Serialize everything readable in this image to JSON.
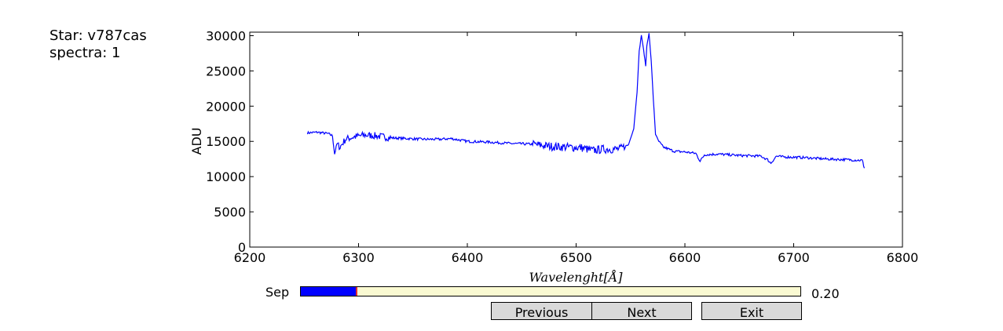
{
  "info": {
    "star_line": "Star: v787cas",
    "spectra_line": "spectra: 1"
  },
  "chart_data": {
    "type": "line",
    "xlabel": "Wavelenght[Å]",
    "ylabel": "ADU",
    "xlim": [
      6200,
      6800
    ],
    "ylim": [
      0,
      30500
    ],
    "xticks": [
      "6200",
      "6300",
      "6400",
      "6500",
      "6600",
      "6700",
      "6800"
    ],
    "yticks": [
      "0",
      "5000",
      "10000",
      "15000",
      "20000",
      "25000",
      "30000"
    ],
    "grid": false,
    "line_color": "#0000ff",
    "series": [
      {
        "x": [
          6253,
          6262,
          6272,
          6276,
          6278,
          6280,
          6283,
          6288,
          6295,
          6305,
          6315,
          6330,
          6345,
          6360,
          6375,
          6385,
          6400,
          6420,
          6440,
          6460,
          6475,
          6490,
          6505,
          6515,
          6525,
          6540,
          6548,
          6553,
          6556,
          6558,
          6560,
          6562,
          6564,
          6565,
          6567,
          6569,
          6571,
          6573,
          6576,
          6580,
          6590,
          6600,
          6610,
          6614,
          6618,
          6630,
          6650,
          6670,
          6676,
          6679,
          6684,
          6690,
          6710,
          6730,
          6750,
          6763,
          6765
        ],
        "y": [
          16200,
          16300,
          16100,
          15800,
          13200,
          14600,
          14200,
          15300,
          15600,
          15900,
          15800,
          15500,
          15400,
          15300,
          15300,
          15400,
          15000,
          14900,
          14700,
          14600,
          14300,
          14200,
          14100,
          13700,
          13900,
          13900,
          14500,
          16800,
          22000,
          27800,
          30100,
          28000,
          25700,
          28500,
          30400,
          26500,
          21000,
          16000,
          15000,
          14200,
          13600,
          13500,
          13300,
          12200,
          13100,
          13200,
          13000,
          12900,
          12400,
          11900,
          12900,
          12800,
          12700,
          12500,
          12400,
          12300,
          11200
        ]
      }
    ]
  },
  "slider": {
    "label": "Sep",
    "value_text": "0.20",
    "fraction": 0.113,
    "fill_color": "#0000ff",
    "track_color": "#fafad2"
  },
  "buttons": {
    "previous": "Previous",
    "next": "Next",
    "exit": "Exit"
  }
}
